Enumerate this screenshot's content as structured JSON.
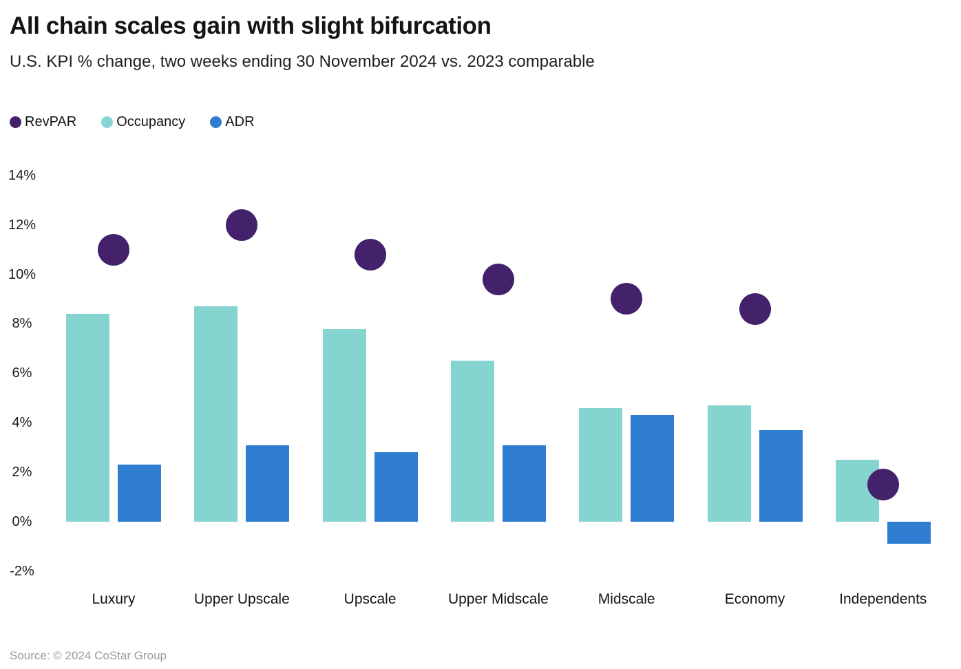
{
  "header": {
    "title": "All chain scales gain with slight bifurcation",
    "subtitle": "U.S. KPI % change, two weeks ending 30 November 2024 vs. 2023 comparable"
  },
  "source_note": "Source: © 2024 CoStar Group",
  "colors": {
    "revpar": "#44226B",
    "occupancy": "#85D4D0",
    "adr": "#2E7DD1",
    "title_text": "#141414",
    "source_text": "#9A9A9A"
  },
  "chart_data": {
    "type": "bar",
    "subtype": "grouped bars (Occupancy, ADR) with RevPAR shown as scatter dots",
    "title": "All chain scales gain with slight bifurcation",
    "subtitle": "U.S. KPI % change, two weeks ending 30 November 2024 vs. 2023 comparable",
    "categories": [
      "Luxury",
      "Upper Upscale",
      "Upscale",
      "Upper Midscale",
      "Midscale",
      "Economy",
      "Independents"
    ],
    "series": [
      {
        "name": "RevPAR",
        "type": "scatter",
        "color": "#44226B",
        "values": [
          11.0,
          12.0,
          10.8,
          9.8,
          9.0,
          8.6,
          1.5
        ]
      },
      {
        "name": "Occupancy",
        "type": "bar",
        "color": "#85D4D0",
        "values": [
          8.4,
          8.7,
          7.8,
          6.5,
          4.6,
          4.7,
          2.5
        ]
      },
      {
        "name": "ADR",
        "type": "bar",
        "color": "#2E7DD1",
        "values": [
          2.3,
          3.1,
          2.8,
          3.1,
          4.3,
          3.7,
          -0.9
        ]
      }
    ],
    "xlabel": "",
    "ylabel": "",
    "yticks": [
      14,
      12,
      10,
      8,
      6,
      4,
      2,
      0,
      -2
    ],
    "ytick_suffix": "%",
    "ylim": [
      -2,
      14
    ],
    "grid": false,
    "axis_lines": false,
    "legend_position": "top-left"
  }
}
